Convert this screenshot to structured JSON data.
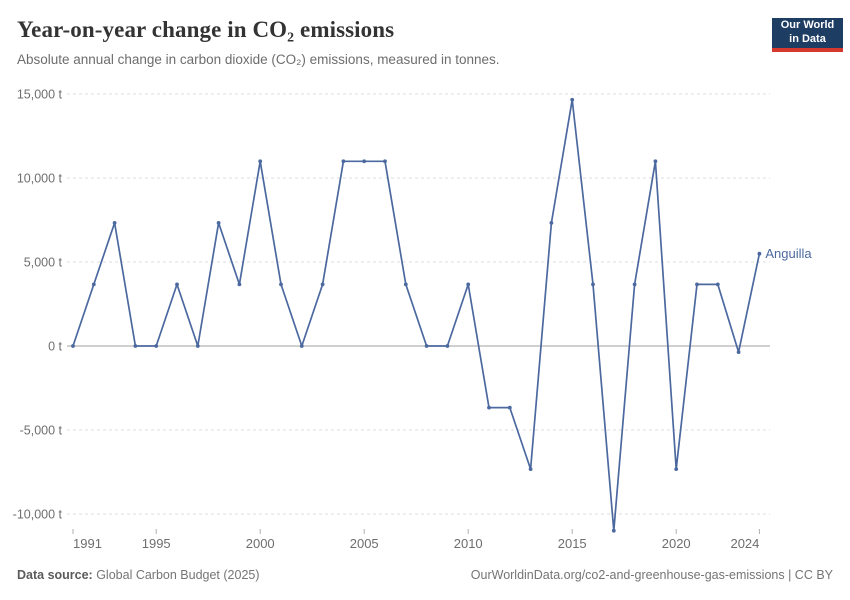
{
  "header": {
    "title": "Year-on-year change in CO₂ emissions",
    "subtitle": "Absolute annual change in carbon dioxide (CO₂) emissions, measured in tonnes."
  },
  "logo": {
    "line1": "Our World",
    "line2": "in Data",
    "bg_color": "#1d3d63",
    "bar_color": "#d7382e"
  },
  "chart_data": {
    "type": "line",
    "title": "Year-on-year change in CO₂ emissions",
    "xlabel": "",
    "ylabel": "",
    "grid": "horizontal-dashed",
    "legend_position": "end-of-line",
    "xlim": [
      1991,
      2024.5
    ],
    "ylim": [
      -11500,
      15500
    ],
    "y_unit": "t",
    "series": [
      {
        "name": "Anguilla",
        "color": "#4b689f",
        "x": [
          1991,
          1992,
          1993,
          1994,
          1995,
          1996,
          1997,
          1998,
          1999,
          2000,
          2001,
          2002,
          2003,
          2004,
          2005,
          2006,
          2007,
          2008,
          2009,
          2010,
          2011,
          2012,
          2013,
          2014,
          2015,
          2016,
          2017,
          2018,
          2019,
          2020,
          2021,
          2022,
          2023,
          2024
        ],
        "values": [
          0,
          3664,
          7328,
          0,
          0,
          3664,
          0,
          7328,
          3664,
          10992,
          3664,
          0,
          3664,
          10992,
          10992,
          10992,
          3664,
          0,
          0,
          3664,
          -3664,
          -3664,
          -7328,
          7328,
          14656,
          3664,
          -10992,
          3664,
          10992,
          -7328,
          3664,
          3664,
          -366,
          5496
        ]
      }
    ],
    "y_ticks": [
      {
        "value": 15000,
        "label": "15,000 t"
      },
      {
        "value": 10000,
        "label": "10,000 t"
      },
      {
        "value": 5000,
        "label": "5,000 t"
      },
      {
        "value": 0,
        "label": "0 t"
      },
      {
        "value": -5000,
        "label": "-5,000 t"
      },
      {
        "value": -10000,
        "label": "-10,000 t"
      }
    ],
    "x_ticks": [
      {
        "value": 1991,
        "label": "1991",
        "anchor": "start"
      },
      {
        "value": 1995,
        "label": "1995",
        "anchor": "middle"
      },
      {
        "value": 2000,
        "label": "2000",
        "anchor": "middle"
      },
      {
        "value": 2005,
        "label": "2005",
        "anchor": "middle"
      },
      {
        "value": 2010,
        "label": "2010",
        "anchor": "middle"
      },
      {
        "value": 2015,
        "label": "2015",
        "anchor": "middle"
      },
      {
        "value": 2020,
        "label": "2020",
        "anchor": "middle"
      },
      {
        "value": 2024,
        "label": "2024",
        "anchor": "end"
      }
    ],
    "end_label": "Anguilla"
  },
  "footer": {
    "source_label": "Data source:",
    "source_value": " Global Carbon Budget (2025)",
    "right_text": "OurWorldinData.org/co2-and-greenhouse-gas-emissions | CC BY"
  }
}
